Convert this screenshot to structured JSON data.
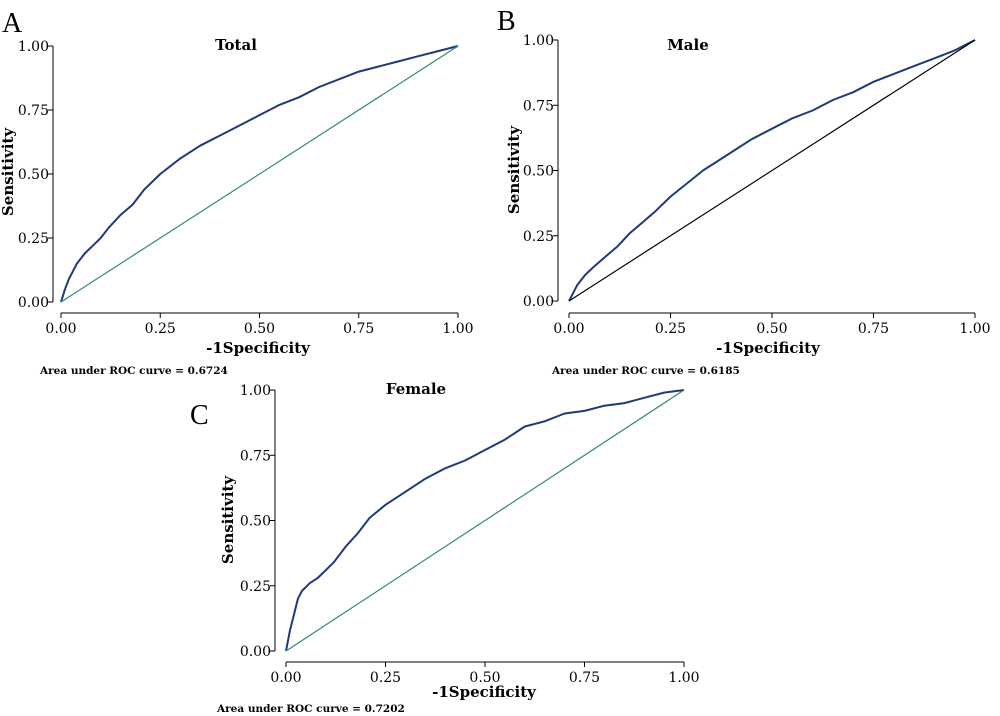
{
  "panels": [
    {
      "letter": "A",
      "title": "Total",
      "xlabel": "-1Specificity",
      "ylabel": "Sensitivity",
      "auc_text": "Area under ROC curve = 0.6724",
      "ref_color": "#2e8b6e"
    },
    {
      "letter": "B",
      "title": "Male",
      "xlabel": "-1Specificity",
      "ylabel": "Sensitivity",
      "auc_text": "Area under ROC curve = 0.6185",
      "ref_color": "#000000"
    },
    {
      "letter": "C",
      "title": "Female",
      "xlabel": "-1Specificity",
      "ylabel": "Sensitivity",
      "auc_text": "Area under ROC curve = 0.7202",
      "ref_color": "#2e8b6e"
    }
  ],
  "tick_labels": [
    "0.00",
    "0.25",
    "0.50",
    "0.75",
    "1.00"
  ],
  "chart_data": [
    {
      "type": "line",
      "title": "Total",
      "xlabel": "-1Specificity",
      "ylabel": "Sensitivity",
      "xlim": [
        0,
        1
      ],
      "ylim": [
        0,
        1
      ],
      "grid": false,
      "series": [
        {
          "color": "#1f3a7a",
          "x": [
            0,
            0.01,
            0.02,
            0.04,
            0.06,
            0.08,
            0.1,
            0.12,
            0.15,
            0.18,
            0.21,
            0.25,
            0.3,
            0.35,
            0.4,
            0.45,
            0.5,
            0.55,
            0.6,
            0.65,
            0.7,
            0.75,
            0.8,
            0.85,
            0.9,
            0.95,
            1.0
          ],
          "y": [
            0,
            0.05,
            0.09,
            0.15,
            0.19,
            0.22,
            0.25,
            0.29,
            0.34,
            0.38,
            0.44,
            0.5,
            0.56,
            0.61,
            0.65,
            0.69,
            0.73,
            0.77,
            0.8,
            0.84,
            0.87,
            0.9,
            0.92,
            0.94,
            0.96,
            0.98,
            1.0
          ]
        },
        {
          "color": "#2e8b6e",
          "x": [
            0,
            1
          ],
          "y": [
            0,
            1
          ]
        }
      ]
    },
    {
      "type": "line",
      "title": "Male",
      "xlabel": "-1Specificity",
      "ylabel": "Sensitivity",
      "xlim": [
        0,
        1
      ],
      "ylim": [
        0,
        1
      ],
      "grid": false,
      "series": [
        {
          "color": "#1f3a7a",
          "x": [
            0,
            0.01,
            0.02,
            0.04,
            0.06,
            0.09,
            0.12,
            0.15,
            0.18,
            0.21,
            0.25,
            0.29,
            0.33,
            0.37,
            0.41,
            0.45,
            0.5,
            0.55,
            0.6,
            0.65,
            0.7,
            0.75,
            0.8,
            0.85,
            0.9,
            0.95,
            1.0
          ],
          "y": [
            0,
            0.03,
            0.06,
            0.1,
            0.13,
            0.17,
            0.21,
            0.26,
            0.3,
            0.34,
            0.4,
            0.45,
            0.5,
            0.54,
            0.58,
            0.62,
            0.66,
            0.7,
            0.73,
            0.77,
            0.8,
            0.84,
            0.87,
            0.9,
            0.93,
            0.96,
            1.0
          ]
        },
        {
          "color": "#000000",
          "x": [
            0,
            1
          ],
          "y": [
            0,
            1
          ]
        }
      ]
    },
    {
      "type": "line",
      "title": "Female",
      "xlabel": "-1Specificity",
      "ylabel": "Sensitivity",
      "xlim": [
        0,
        1
      ],
      "ylim": [
        0,
        1
      ],
      "grid": false,
      "series": [
        {
          "color": "#1f3a7a",
          "x": [
            0,
            0.005,
            0.01,
            0.02,
            0.03,
            0.04,
            0.06,
            0.08,
            0.1,
            0.12,
            0.15,
            0.18,
            0.21,
            0.25,
            0.3,
            0.35,
            0.4,
            0.45,
            0.5,
            0.55,
            0.6,
            0.65,
            0.7,
            0.75,
            0.8,
            0.85,
            0.9,
            0.95,
            1.0
          ],
          "y": [
            0,
            0.04,
            0.08,
            0.14,
            0.2,
            0.23,
            0.26,
            0.28,
            0.31,
            0.34,
            0.4,
            0.45,
            0.51,
            0.56,
            0.61,
            0.66,
            0.7,
            0.73,
            0.77,
            0.81,
            0.86,
            0.88,
            0.91,
            0.92,
            0.94,
            0.95,
            0.97,
            0.99,
            1.0
          ]
        },
        {
          "color": "#2e8b6e",
          "x": [
            0,
            1
          ],
          "y": [
            0,
            1
          ]
        }
      ]
    }
  ]
}
